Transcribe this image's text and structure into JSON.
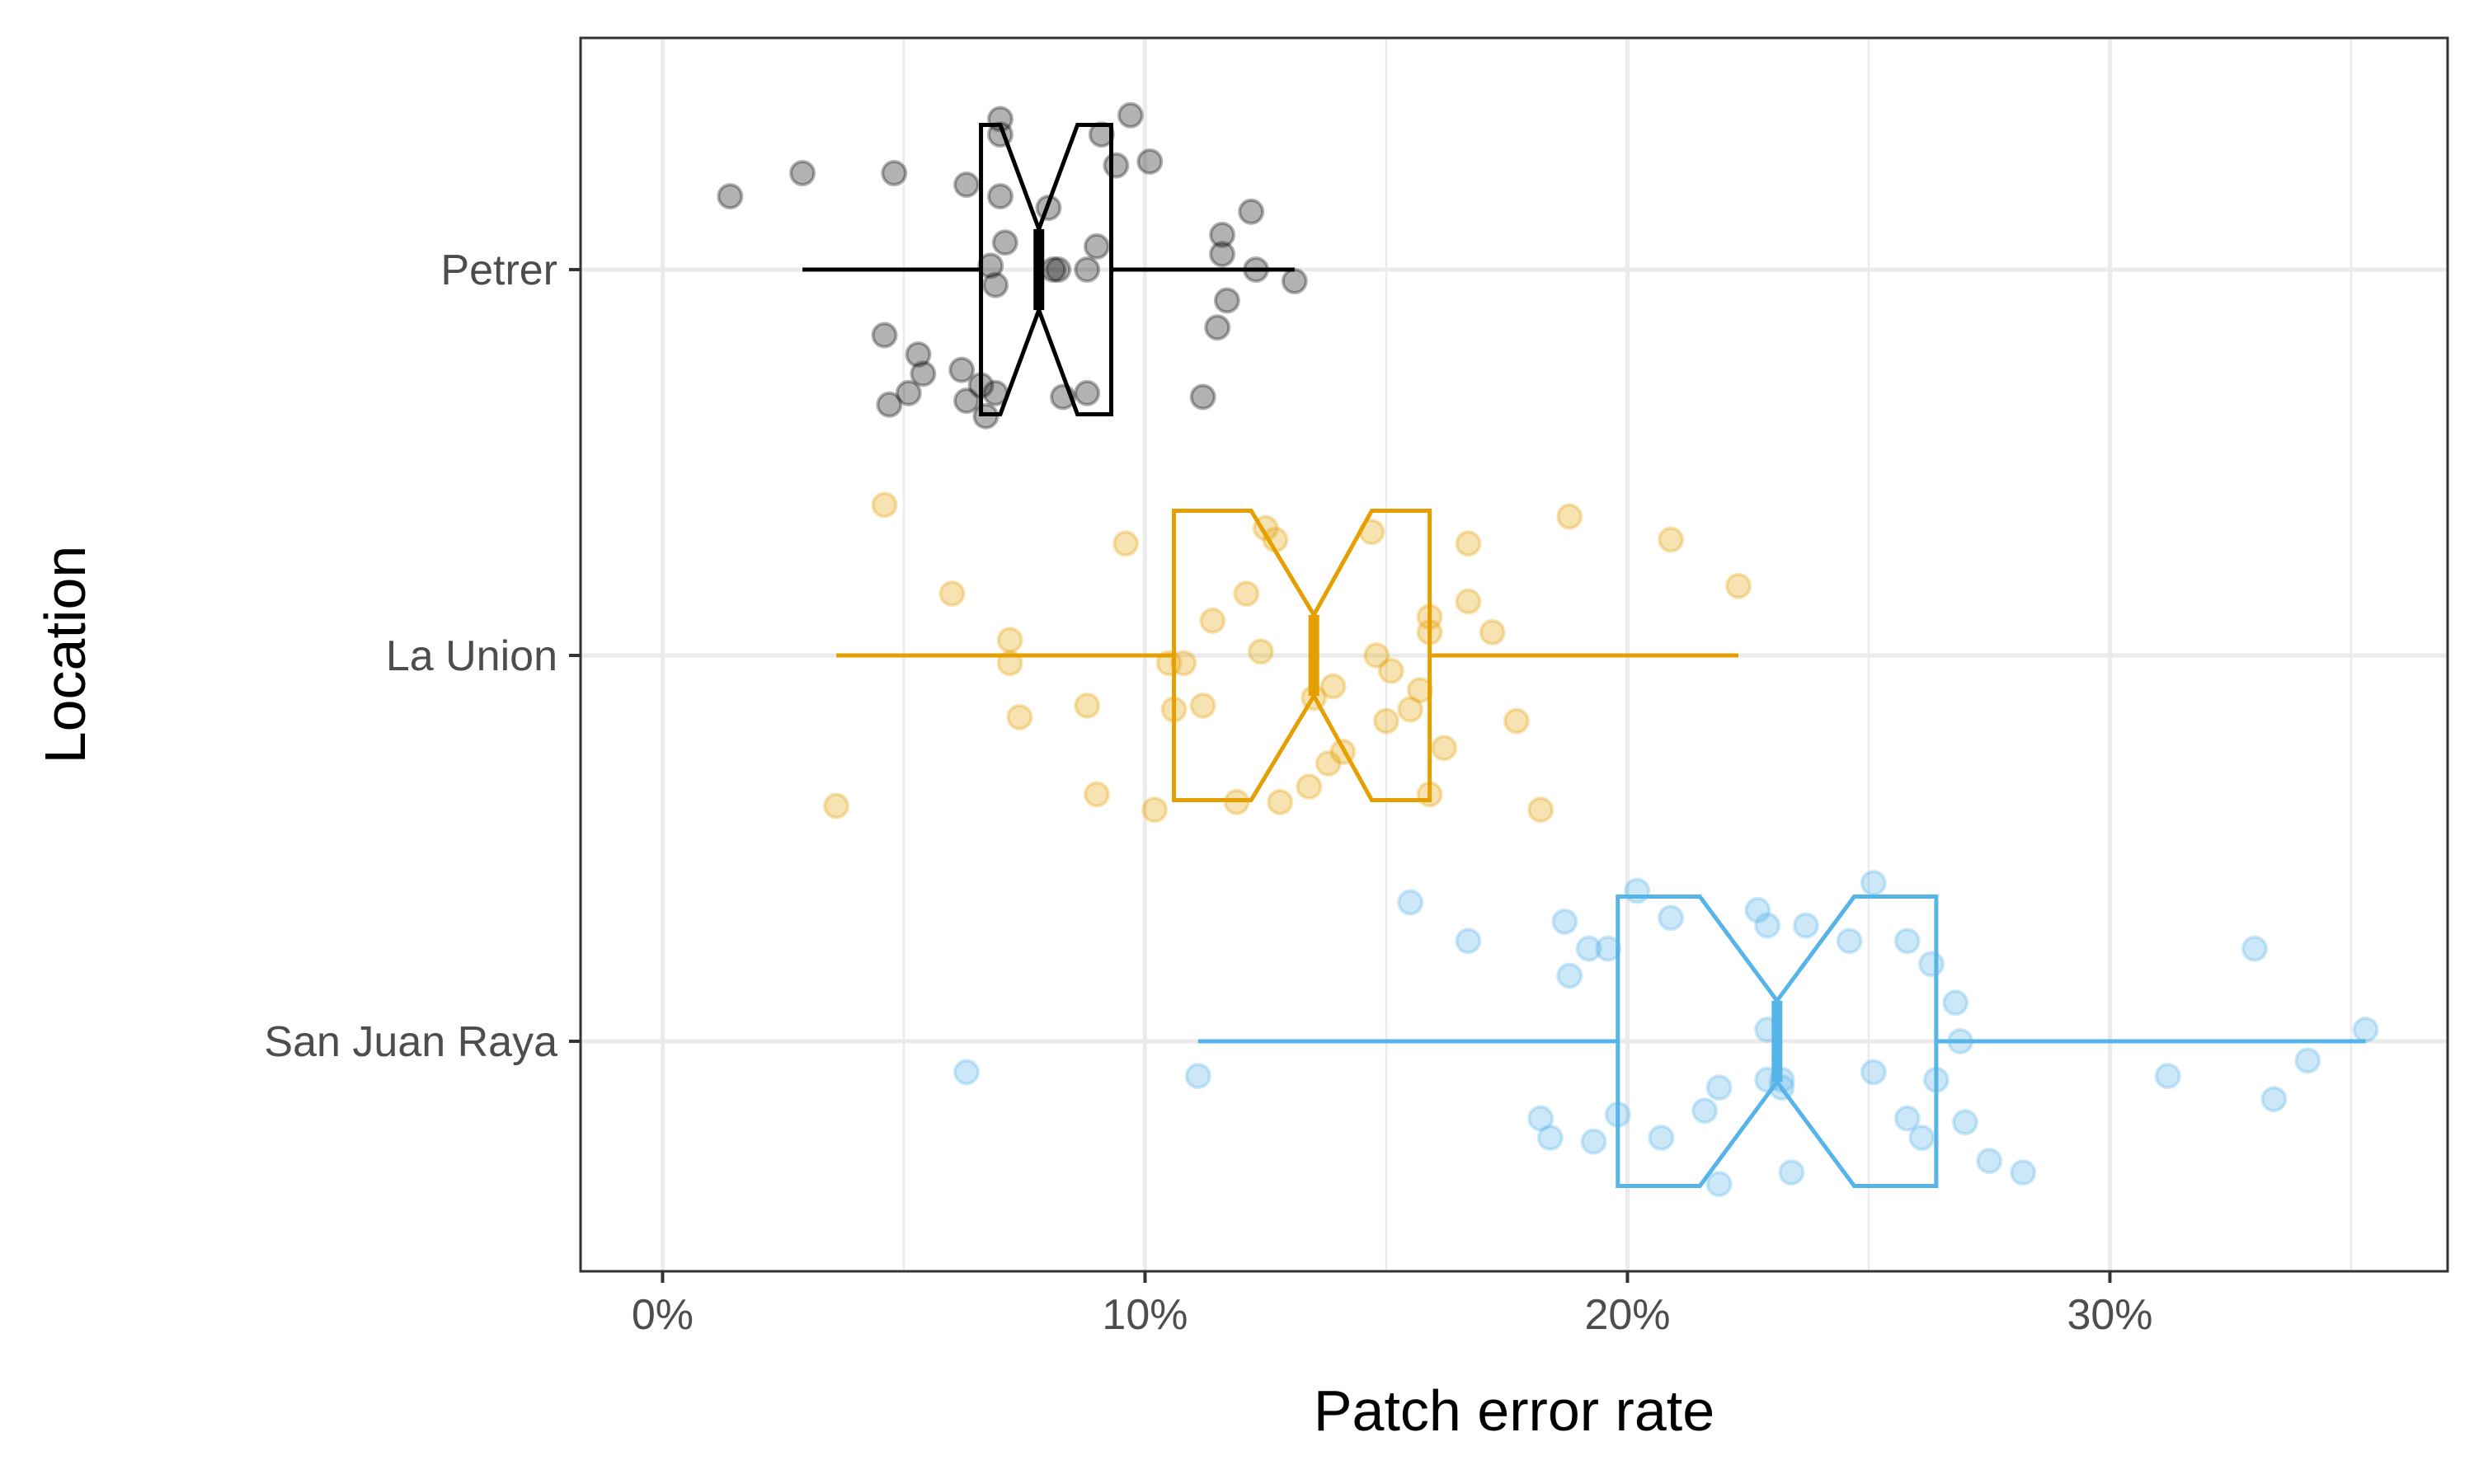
{
  "chart_data": {
    "type": "boxplot",
    "xlabel": "Patch error rate",
    "ylabel": "Location",
    "xlim": [
      -0.017,
      0.37
    ],
    "x_ticks": [
      0,
      0.1,
      0.2,
      0.3
    ],
    "x_tick_labels": [
      "0%",
      "10%",
      "20%",
      "30%"
    ],
    "grid": true,
    "legend": "none",
    "notched": true,
    "series": [
      {
        "name": "Petrer",
        "color": "#000000",
        "stats": {
          "whisker_low": 0.029,
          "q1": 0.066,
          "median": 0.078,
          "q3": 0.093,
          "whisker_high": 0.131,
          "notch_low": 0.07,
          "notch_high": 0.086
        },
        "points": [
          {
            "x": 0.014,
            "j": 0.19
          },
          {
            "x": 0.029,
            "j": 0.25
          },
          {
            "x": 0.048,
            "j": 0.25
          },
          {
            "x": 0.046,
            "j": -0.17
          },
          {
            "x": 0.047,
            "j": -0.35
          },
          {
            "x": 0.051,
            "j": -0.32
          },
          {
            "x": 0.053,
            "j": -0.22
          },
          {
            "x": 0.054,
            "j": -0.27
          },
          {
            "x": 0.062,
            "j": -0.26
          },
          {
            "x": 0.063,
            "j": 0.22
          },
          {
            "x": 0.063,
            "j": -0.34
          },
          {
            "x": 0.066,
            "j": -0.3
          },
          {
            "x": 0.067,
            "j": -0.38
          },
          {
            "x": 0.068,
            "j": 0.01
          },
          {
            "x": 0.069,
            "j": -0.04
          },
          {
            "x": 0.069,
            "j": -0.32
          },
          {
            "x": 0.07,
            "j": 0.39
          },
          {
            "x": 0.07,
            "j": 0.19
          },
          {
            "x": 0.071,
            "j": 0.07
          },
          {
            "x": 0.07,
            "j": 0.35
          },
          {
            "x": 0.08,
            "j": 0.16
          },
          {
            "x": 0.081,
            "j": 0.0
          },
          {
            "x": 0.082,
            "j": 0.0
          },
          {
            "x": 0.083,
            "j": -0.33
          },
          {
            "x": 0.088,
            "j": 0.0
          },
          {
            "x": 0.088,
            "j": -0.32
          },
          {
            "x": 0.09,
            "j": 0.06
          },
          {
            "x": 0.091,
            "j": 0.35
          },
          {
            "x": 0.094,
            "j": 0.27
          },
          {
            "x": 0.097,
            "j": 0.4
          },
          {
            "x": 0.101,
            "j": 0.28
          },
          {
            "x": 0.112,
            "j": -0.33
          },
          {
            "x": 0.115,
            "j": -0.15
          },
          {
            "x": 0.116,
            "j": 0.04
          },
          {
            "x": 0.116,
            "j": 0.09
          },
          {
            "x": 0.117,
            "j": -0.08
          },
          {
            "x": 0.122,
            "j": 0.15
          },
          {
            "x": 0.123,
            "j": 0.0
          },
          {
            "x": 0.131,
            "j": -0.03
          }
        ]
      },
      {
        "name": "La Union",
        "color": "#E69F00",
        "stats": {
          "whisker_low": 0.036,
          "q1": 0.106,
          "median": 0.135,
          "q3": 0.159,
          "whisker_high": 0.223,
          "notch_low": 0.122,
          "notch_high": 0.147
        },
        "points": [
          {
            "x": 0.036,
            "j": -0.39
          },
          {
            "x": 0.046,
            "j": 0.39
          },
          {
            "x": 0.06,
            "j": 0.16
          },
          {
            "x": 0.072,
            "j": 0.04
          },
          {
            "x": 0.072,
            "j": -0.02
          },
          {
            "x": 0.074,
            "j": -0.16
          },
          {
            "x": 0.088,
            "j": -0.13
          },
          {
            "x": 0.09,
            "j": -0.36
          },
          {
            "x": 0.096,
            "j": 0.29
          },
          {
            "x": 0.102,
            "j": -0.4
          },
          {
            "x": 0.105,
            "j": -0.02
          },
          {
            "x": 0.106,
            "j": -0.14
          },
          {
            "x": 0.108,
            "j": -0.02
          },
          {
            "x": 0.112,
            "j": -0.13
          },
          {
            "x": 0.114,
            "j": 0.09
          },
          {
            "x": 0.119,
            "j": -0.38
          },
          {
            "x": 0.121,
            "j": 0.16
          },
          {
            "x": 0.124,
            "j": 0.01
          },
          {
            "x": 0.125,
            "j": 0.33
          },
          {
            "x": 0.127,
            "j": 0.3
          },
          {
            "x": 0.128,
            "j": -0.38
          },
          {
            "x": 0.134,
            "j": -0.34
          },
          {
            "x": 0.135,
            "j": -0.11
          },
          {
            "x": 0.138,
            "j": -0.28
          },
          {
            "x": 0.139,
            "j": -0.08
          },
          {
            "x": 0.141,
            "j": -0.25
          },
          {
            "x": 0.147,
            "j": 0.32
          },
          {
            "x": 0.148,
            "j": 0.0
          },
          {
            "x": 0.15,
            "j": -0.17
          },
          {
            "x": 0.151,
            "j": -0.04
          },
          {
            "x": 0.155,
            "j": -0.14
          },
          {
            "x": 0.157,
            "j": -0.09
          },
          {
            "x": 0.159,
            "j": 0.1
          },
          {
            "x": 0.159,
            "j": 0.06
          },
          {
            "x": 0.159,
            "j": -0.36
          },
          {
            "x": 0.162,
            "j": -0.24
          },
          {
            "x": 0.167,
            "j": 0.14
          },
          {
            "x": 0.167,
            "j": 0.29
          },
          {
            "x": 0.172,
            "j": 0.06
          },
          {
            "x": 0.177,
            "j": -0.17
          },
          {
            "x": 0.182,
            "j": -0.4
          },
          {
            "x": 0.188,
            "j": 0.36
          },
          {
            "x": 0.209,
            "j": 0.3
          },
          {
            "x": 0.223,
            "j": 0.18
          }
        ]
      },
      {
        "name": "San Juan Raya",
        "color": "#56B4E9",
        "stats": {
          "whisker_low": 0.111,
          "q1": 0.198,
          "median": 0.231,
          "q3": 0.264,
          "whisker_high": 0.353,
          "notch_low": 0.215,
          "notch_high": 0.247
        },
        "points": [
          {
            "x": 0.063,
            "j": -0.08
          },
          {
            "x": 0.111,
            "j": -0.09
          },
          {
            "x": 0.155,
            "j": 0.36
          },
          {
            "x": 0.167,
            "j": 0.26
          },
          {
            "x": 0.182,
            "j": -0.2
          },
          {
            "x": 0.184,
            "j": -0.25
          },
          {
            "x": 0.187,
            "j": 0.31
          },
          {
            "x": 0.188,
            "j": 0.17
          },
          {
            "x": 0.192,
            "j": 0.24
          },
          {
            "x": 0.193,
            "j": -0.26
          },
          {
            "x": 0.196,
            "j": 0.24
          },
          {
            "x": 0.198,
            "j": -0.19
          },
          {
            "x": 0.202,
            "j": 0.39
          },
          {
            "x": 0.207,
            "j": -0.25
          },
          {
            "x": 0.209,
            "j": 0.32
          },
          {
            "x": 0.216,
            "j": -0.18
          },
          {
            "x": 0.219,
            "j": -0.12
          },
          {
            "x": 0.219,
            "j": -0.37
          },
          {
            "x": 0.227,
            "j": 0.34
          },
          {
            "x": 0.229,
            "j": 0.3
          },
          {
            "x": 0.229,
            "j": 0.03
          },
          {
            "x": 0.229,
            "j": -0.1
          },
          {
            "x": 0.232,
            "j": -0.1
          },
          {
            "x": 0.232,
            "j": -0.12
          },
          {
            "x": 0.234,
            "j": -0.34
          },
          {
            "x": 0.237,
            "j": 0.3
          },
          {
            "x": 0.246,
            "j": 0.26
          },
          {
            "x": 0.251,
            "j": 0.41
          },
          {
            "x": 0.251,
            "j": -0.08
          },
          {
            "x": 0.258,
            "j": 0.26
          },
          {
            "x": 0.258,
            "j": -0.2
          },
          {
            "x": 0.261,
            "j": -0.25
          },
          {
            "x": 0.263,
            "j": 0.2
          },
          {
            "x": 0.264,
            "j": -0.1
          },
          {
            "x": 0.268,
            "j": 0.1
          },
          {
            "x": 0.269,
            "j": 0.0
          },
          {
            "x": 0.27,
            "j": -0.21
          },
          {
            "x": 0.275,
            "j": -0.31
          },
          {
            "x": 0.282,
            "j": -0.34
          },
          {
            "x": 0.312,
            "j": -0.09
          },
          {
            "x": 0.33,
            "j": 0.24
          },
          {
            "x": 0.334,
            "j": -0.15
          },
          {
            "x": 0.341,
            "j": -0.05
          },
          {
            "x": 0.353,
            "j": 0.03
          }
        ]
      }
    ]
  }
}
